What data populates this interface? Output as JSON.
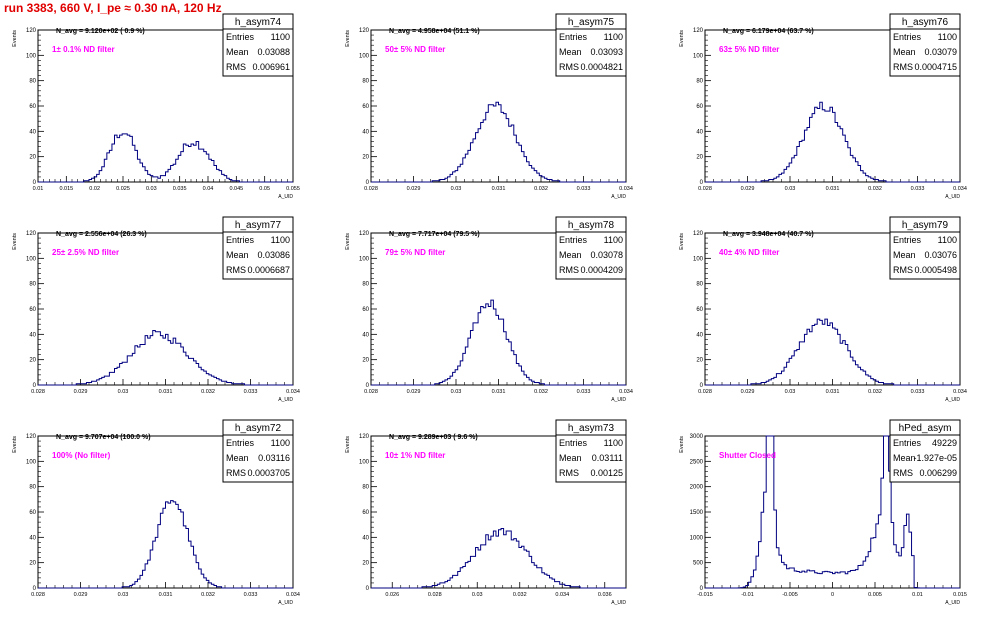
{
  "page_title": "run 3383,   660 V, I_pe ≈ 0.30 nA, 120 Hz",
  "labels": {
    "ylabel": "Events",
    "xlabel": "A_UID",
    "stat_entries": "Entries",
    "stat_mean": "Mean",
    "stat_rms": "RMS"
  },
  "colors": {
    "histogram": "#000080",
    "annotation": "#ff00ff",
    "title": "#e00000",
    "axis": "#000000"
  },
  "chart_data": [
    {
      "type": "bar",
      "name": "h_asym74",
      "navg": "N_avg = 9.120e+02 ( 0.9 %)",
      "filter": "1± 0.1% ND filter",
      "stats": {
        "entries": "1100",
        "mean": "0.03088",
        "rms": "0.006961"
      },
      "xlim": [
        0.01,
        0.055
      ],
      "ylim": [
        0,
        120
      ],
      "xticks": [
        "0.01",
        "0.015",
        "0.02",
        "0.025",
        "0.03",
        "0.035",
        "0.04",
        "0.045",
        "0.05",
        "0.055"
      ],
      "yticks": [
        "0",
        "20",
        "40",
        "60",
        "80",
        "100",
        "120"
      ],
      "peaks": [
        {
          "mean": 0.025,
          "sigma": 0.0023,
          "amp": 40
        },
        {
          "mean": 0.0375,
          "sigma": 0.0028,
          "amp": 32
        }
      ],
      "noise": 0.22
    },
    {
      "type": "bar",
      "name": "h_asym75",
      "navg": "N_avg = 4.958e+04 (51.1 %)",
      "filter": "50± 5% ND filter",
      "stats": {
        "entries": "1100",
        "mean": "0.03093",
        "rms": "0.0004821"
      },
      "xlim": [
        0.028,
        0.034
      ],
      "ylim": [
        0,
        120
      ],
      "xticks": [
        "0.028",
        "0.029",
        "0.03",
        "0.031",
        "0.032",
        "0.033",
        "0.034"
      ],
      "yticks": [
        "0",
        "20",
        "40",
        "60",
        "80",
        "100",
        "120"
      ],
      "peaks": [
        {
          "mean": 0.03093,
          "sigma": 0.00048,
          "amp": 60
        }
      ],
      "noise": 0.14
    },
    {
      "type": "bar",
      "name": "h_asym76",
      "navg": "N_avg = 6.179e+04 (63.7 %)",
      "filter": "63± 5% ND filter",
      "stats": {
        "entries": "1100",
        "mean": "0.03079",
        "rms": "0.0004715"
      },
      "xlim": [
        0.028,
        0.034
      ],
      "ylim": [
        0,
        120
      ],
      "xticks": [
        "0.028",
        "0.029",
        "0.03",
        "0.031",
        "0.032",
        "0.033",
        "0.034"
      ],
      "yticks": [
        "0",
        "20",
        "40",
        "60",
        "80",
        "100",
        "120"
      ],
      "peaks": [
        {
          "mean": 0.03079,
          "sigma": 0.00047,
          "amp": 60
        }
      ],
      "noise": 0.14
    },
    {
      "type": "bar",
      "name": "h_asym77",
      "navg": "N_avg = 2.556e+04 (26.3 %)",
      "filter": "25± 2.5% ND filter",
      "stats": {
        "entries": "1100",
        "mean": "0.03086",
        "rms": "0.0006687"
      },
      "xlim": [
        0.028,
        0.034
      ],
      "ylim": [
        0,
        120
      ],
      "xticks": [
        "0.028",
        "0.029",
        "0.03",
        "0.031",
        "0.032",
        "0.033",
        "0.034"
      ],
      "yticks": [
        "0",
        "20",
        "40",
        "60",
        "80",
        "100",
        "120"
      ],
      "peaks": [
        {
          "mean": 0.03086,
          "sigma": 0.00067,
          "amp": 40
        }
      ],
      "noise": 0.18
    },
    {
      "type": "bar",
      "name": "h_asym78",
      "navg": "N_avg = 7.717e+04 (79.5 %)",
      "filter": "79± 5% ND filter",
      "stats": {
        "entries": "1100",
        "mean": "0.03078",
        "rms": "0.0004209"
      },
      "xlim": [
        0.028,
        0.034
      ],
      "ylim": [
        0,
        120
      ],
      "xticks": [
        "0.028",
        "0.029",
        "0.03",
        "0.031",
        "0.032",
        "0.033",
        "0.034"
      ],
      "yticks": [
        "0",
        "20",
        "40",
        "60",
        "80",
        "100",
        "120"
      ],
      "peaks": [
        {
          "mean": 0.03078,
          "sigma": 0.00042,
          "amp": 65
        }
      ],
      "noise": 0.14
    },
    {
      "type": "bar",
      "name": "h_asym79",
      "navg": "N_avg = 3.948e+04 (40.7 %)",
      "filter": "40± 4% ND filter",
      "stats": {
        "entries": "1100",
        "mean": "0.03076",
        "rms": "0.0005498"
      },
      "xlim": [
        0.028,
        0.034
      ],
      "ylim": [
        0,
        120
      ],
      "xticks": [
        "0.028",
        "0.029",
        "0.03",
        "0.031",
        "0.032",
        "0.033",
        "0.034"
      ],
      "yticks": [
        "0",
        "20",
        "40",
        "60",
        "80",
        "100",
        "120"
      ],
      "peaks": [
        {
          "mean": 0.03076,
          "sigma": 0.00055,
          "amp": 50
        }
      ],
      "noise": 0.16
    },
    {
      "type": "bar",
      "name": "h_asym72",
      "navg": "N_avg = 9.707e+04 (100.0 %)",
      "filter": "100% (No filter)",
      "stats": {
        "entries": "1100",
        "mean": "0.03116",
        "rms": "0.0003705"
      },
      "xlim": [
        0.028,
        0.034
      ],
      "ylim": [
        0,
        120
      ],
      "xticks": [
        "0.028",
        "0.029",
        "0.03",
        "0.031",
        "0.032",
        "0.033",
        "0.034"
      ],
      "yticks": [
        "0",
        "20",
        "40",
        "60",
        "80",
        "100",
        "120"
      ],
      "peaks": [
        {
          "mean": 0.03116,
          "sigma": 0.00037,
          "amp": 70
        }
      ],
      "noise": 0.12
    },
    {
      "type": "bar",
      "name": "h_asym73",
      "navg": "N_avg = 9.289e+03 ( 9.6 %)",
      "filter": "10± 1% ND filter",
      "stats": {
        "entries": "1100",
        "mean": "0.03111",
        "rms": "0.00125"
      },
      "xlim": [
        0.025,
        0.037
      ],
      "ylim": [
        0,
        120
      ],
      "xticks": [
        "0.026",
        "0.028",
        "0.03",
        "0.032",
        "0.034",
        "0.036"
      ],
      "yticks": [
        "0",
        "20",
        "40",
        "60",
        "80",
        "100",
        "120"
      ],
      "peaks": [
        {
          "mean": 0.03111,
          "sigma": 0.00125,
          "amp": 45
        }
      ],
      "noise": 0.18
    },
    {
      "type": "bar",
      "name": "hPed_asym",
      "navg": "",
      "filter": "Shutter Closed",
      "stats": {
        "entries": "49229",
        "mean": "-1.927e-05",
        "rms": "0.006299"
      },
      "xlim": [
        -0.015,
        0.015
      ],
      "ylim": [
        0,
        3000
      ],
      "xticks": [
        "-0.015",
        "-0.01",
        "-0.005",
        "0",
        "0.005",
        "0.01",
        "0.015"
      ],
      "yticks": [
        "0",
        "500",
        "1000",
        "1500",
        "2000",
        "2500",
        "3000"
      ],
      "pedestal": true
    }
  ]
}
